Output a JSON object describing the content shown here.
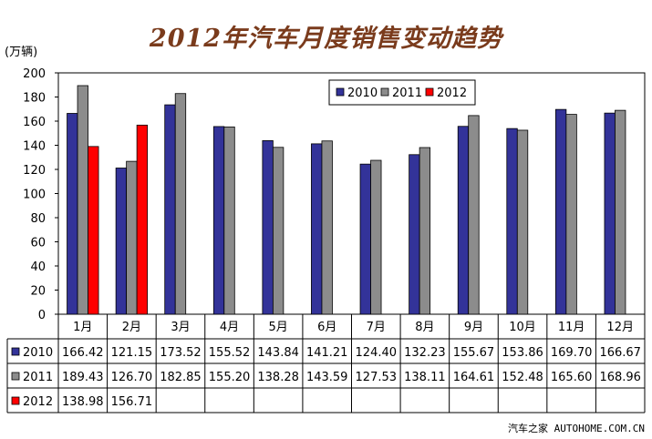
{
  "title": "2012年汽车月度销售变动趋势",
  "watermark": "汽车之家 AUTOHOME.COM.CN",
  "chart_data": {
    "type": "bar",
    "title": "2012年汽车月度销售变动趋势",
    "ylabel": "(万辆)",
    "xlabel": "",
    "ylim": [
      0,
      200
    ],
    "yticks": [
      0,
      20,
      40,
      60,
      80,
      100,
      120,
      140,
      160,
      180,
      200
    ],
    "grid": false,
    "legend_position": "top-center",
    "categories": [
      "1月",
      "2月",
      "3月",
      "4月",
      "5月",
      "6月",
      "7月",
      "8月",
      "9月",
      "10月",
      "11月",
      "12月"
    ],
    "series": [
      {
        "name": "2010",
        "color": "#333399",
        "values": [
          166.42,
          121.15,
          173.52,
          155.52,
          143.84,
          141.21,
          124.4,
          132.23,
          155.67,
          153.86,
          169.7,
          166.67
        ],
        "labels": [
          "166.42",
          "121.15",
          "173.52",
          "155.52",
          "143.84",
          "141.21",
          "124.40",
          "132.23",
          "155.67",
          "153.86",
          "169.70",
          "166.67"
        ]
      },
      {
        "name": "2011",
        "color": "#8c8c8c",
        "values": [
          189.43,
          126.7,
          182.85,
          155.2,
          138.28,
          143.59,
          127.53,
          138.11,
          164.61,
          152.48,
          165.6,
          168.96
        ],
        "labels": [
          "189.43",
          "126.70",
          "182.85",
          "155.20",
          "138.28",
          "143.59",
          "127.53",
          "138.11",
          "164.61",
          "152.48",
          "165.60",
          "168.96"
        ]
      },
      {
        "name": "2012",
        "color": "#ff0000",
        "values": [
          138.98,
          156.71,
          null,
          null,
          null,
          null,
          null,
          null,
          null,
          null,
          null,
          null
        ],
        "labels": [
          "138.98",
          "156.71",
          "",
          "",
          "",
          "",
          "",
          "",
          "",
          "",
          "",
          ""
        ]
      }
    ]
  }
}
